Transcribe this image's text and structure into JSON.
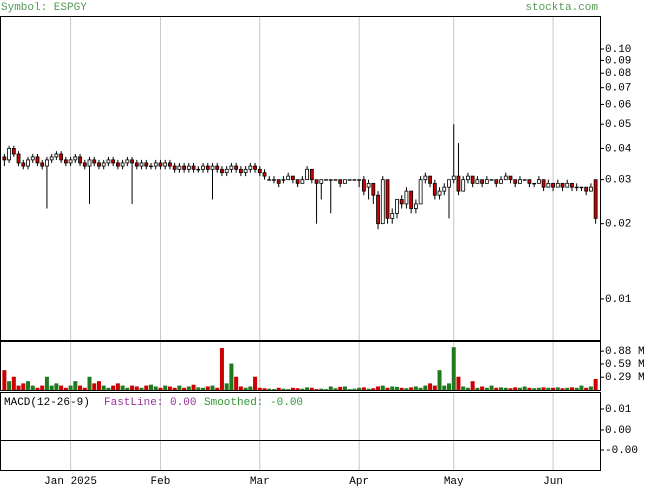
{
  "header": {
    "symbol": "Symbol: ESPGY",
    "site": "stockta.com"
  },
  "chart_data": [
    {
      "type": "candlestick",
      "log_scale": true,
      "grid": true,
      "up_color": "#ffffff",
      "down_color": "#cc0000",
      "categories": [
        null,
        null,
        null,
        null,
        null,
        null,
        null,
        null,
        null,
        null,
        null,
        null,
        null,
        null,
        "Jan 2025",
        null,
        null,
        null,
        null,
        null,
        null,
        null,
        null,
        null,
        null,
        null,
        null,
        null,
        null,
        null,
        null,
        null,
        null,
        "Feb",
        null,
        null,
        null,
        null,
        null,
        null,
        null,
        null,
        null,
        null,
        null,
        null,
        null,
        null,
        null,
        null,
        null,
        null,
        null,
        null,
        "Mar",
        null,
        null,
        null,
        null,
        null,
        null,
        null,
        null,
        null,
        null,
        null,
        null,
        null,
        null,
        null,
        null,
        null,
        null,
        null,
        null,
        "Apr",
        null,
        null,
        null,
        null,
        null,
        null,
        null,
        null,
        null,
        null,
        null,
        null,
        null,
        null,
        null,
        null,
        null,
        null,
        null,
        "May",
        null,
        null,
        null,
        null,
        null,
        null,
        null,
        null,
        null,
        null,
        null,
        null,
        null,
        null,
        null,
        null,
        null,
        null,
        null,
        null,
        "Jun",
        null,
        null,
        null,
        null,
        null,
        null,
        null,
        null,
        null
      ],
      "ohlc": [
        [
          0.037,
          0.038,
          0.034,
          0.036
        ],
        [
          0.036,
          0.041,
          0.035,
          0.04
        ],
        [
          0.04,
          0.041,
          0.037,
          0.038
        ],
        [
          0.038,
          0.039,
          0.034,
          0.035
        ],
        [
          0.035,
          0.036,
          0.033,
          0.034
        ],
        [
          0.034,
          0.037,
          0.033,
          0.036
        ],
        [
          0.036,
          0.038,
          0.035,
          0.037
        ],
        [
          0.037,
          0.038,
          0.034,
          0.035
        ],
        [
          0.035,
          0.036,
          0.033,
          0.034
        ],
        [
          0.034,
          0.037,
          0.023,
          0.036
        ],
        [
          0.036,
          0.038,
          0.035,
          0.037
        ],
        [
          0.037,
          0.039,
          0.036,
          0.038
        ],
        [
          0.038,
          0.039,
          0.035,
          0.036
        ],
        [
          0.036,
          0.037,
          0.034,
          0.035
        ],
        [
          0.035,
          0.037,
          0.034,
          0.036
        ],
        [
          0.036,
          0.038,
          0.035,
          0.037
        ],
        [
          0.037,
          0.038,
          0.034,
          0.035
        ],
        [
          0.035,
          0.036,
          0.033,
          0.034
        ],
        [
          0.034,
          0.037,
          0.024,
          0.036
        ],
        [
          0.036,
          0.037,
          0.034,
          0.035
        ],
        [
          0.035,
          0.036,
          0.033,
          0.034
        ],
        [
          0.034,
          0.036,
          0.033,
          0.035
        ],
        [
          0.035,
          0.037,
          0.034,
          0.036
        ],
        [
          0.036,
          0.037,
          0.034,
          0.035
        ],
        [
          0.035,
          0.036,
          0.033,
          0.034
        ],
        [
          0.034,
          0.036,
          0.033,
          0.035
        ],
        [
          0.035,
          0.037,
          0.034,
          0.036
        ],
        [
          0.036,
          0.037,
          0.024,
          0.035
        ],
        [
          0.035,
          0.036,
          0.033,
          0.034
        ],
        [
          0.034,
          0.036,
          0.033,
          0.035
        ],
        [
          0.035,
          0.036,
          0.033,
          0.034
        ],
        [
          0.034,
          0.035,
          0.033,
          0.034
        ],
        [
          0.034,
          0.036,
          0.033,
          0.035
        ],
        [
          0.035,
          0.036,
          0.033,
          0.034
        ],
        [
          0.034,
          0.036,
          0.033,
          0.035
        ],
        [
          0.035,
          0.036,
          0.033,
          0.034
        ],
        [
          0.034,
          0.035,
          0.032,
          0.033
        ],
        [
          0.033,
          0.035,
          0.032,
          0.034
        ],
        [
          0.034,
          0.035,
          0.032,
          0.033
        ],
        [
          0.033,
          0.035,
          0.032,
          0.034
        ],
        [
          0.034,
          0.035,
          0.032,
          0.033
        ],
        [
          0.033,
          0.034,
          0.032,
          0.033
        ],
        [
          0.033,
          0.035,
          0.032,
          0.034
        ],
        [
          0.034,
          0.035,
          0.032,
          0.033
        ],
        [
          0.033,
          0.035,
          0.025,
          0.034
        ],
        [
          0.034,
          0.035,
          0.032,
          0.033
        ],
        [
          0.033,
          0.034,
          0.031,
          0.032
        ],
        [
          0.032,
          0.034,
          0.031,
          0.033
        ],
        [
          0.033,
          0.035,
          0.032,
          0.034
        ],
        [
          0.034,
          0.035,
          0.032,
          0.033
        ],
        [
          0.033,
          0.034,
          0.031,
          0.032
        ],
        [
          0.032,
          0.034,
          0.031,
          0.033
        ],
        [
          0.033,
          0.035,
          0.032,
          0.034
        ],
        [
          0.034,
          0.035,
          0.032,
          0.033
        ],
        [
          0.033,
          0.034,
          0.031,
          0.032
        ],
        [
          0.032,
          0.033,
          0.03,
          0.031
        ],
        [
          0.03,
          0.031,
          0.03,
          0.03
        ],
        [
          0.03,
          0.031,
          0.029,
          0.03
        ],
        [
          0.03,
          0.03,
          0.028,
          0.029
        ],
        [
          0.03,
          0.031,
          0.029,
          0.03
        ],
        [
          0.03,
          0.032,
          0.03,
          0.031
        ],
        [
          0.031,
          0.031,
          0.029,
          0.03
        ],
        [
          0.03,
          0.03,
          0.028,
          0.029
        ],
        [
          0.029,
          0.031,
          0.029,
          0.03
        ],
        [
          0.03,
          0.034,
          0.03,
          0.033
        ],
        [
          0.033,
          0.033,
          0.029,
          0.03
        ],
        [
          0.03,
          0.03,
          0.02,
          0.029
        ],
        [
          0.029,
          0.03,
          0.025,
          0.03
        ],
        [
          0.03,
          0.03,
          0.03,
          0.03
        ],
        [
          0.03,
          0.03,
          0.022,
          0.03
        ],
        [
          0.03,
          0.03,
          0.03,
          0.03
        ],
        [
          0.03,
          0.03,
          0.028,
          0.029
        ],
        [
          0.029,
          0.03,
          0.029,
          0.03
        ],
        [
          0.03,
          0.03,
          0.03,
          0.03
        ],
        [
          0.03,
          0.03,
          0.03,
          0.03
        ],
        [
          0.03,
          0.03,
          0.028,
          0.03
        ],
        [
          0.03,
          0.031,
          0.026,
          0.027
        ],
        [
          0.028,
          0.03,
          0.025,
          0.029
        ],
        [
          0.029,
          0.029,
          0.024,
          0.026
        ],
        [
          0.026,
          0.027,
          0.019,
          0.02
        ],
        [
          0.02,
          0.031,
          0.02,
          0.03
        ],
        [
          0.03,
          0.03,
          0.02,
          0.021
        ],
        [
          0.021,
          0.023,
          0.02,
          0.022
        ],
        [
          0.022,
          0.025,
          0.021,
          0.025
        ],
        [
          0.025,
          0.026,
          0.023,
          0.024
        ],
        [
          0.024,
          0.028,
          0.023,
          0.027
        ],
        [
          0.027,
          0.027,
          0.022,
          0.023
        ],
        [
          0.023,
          0.025,
          0.022,
          0.024
        ],
        [
          0.024,
          0.031,
          0.024,
          0.03
        ],
        [
          0.03,
          0.032,
          0.029,
          0.031
        ],
        [
          0.031,
          0.031,
          0.028,
          0.029
        ],
        [
          0.029,
          0.03,
          0.025,
          0.026
        ],
        [
          0.026,
          0.028,
          0.025,
          0.027
        ],
        [
          0.027,
          0.029,
          0.026,
          0.028
        ],
        [
          0.028,
          0.03,
          0.021,
          0.03
        ],
        [
          0.03,
          0.05,
          0.029,
          0.031
        ],
        [
          0.031,
          0.042,
          0.026,
          0.027
        ],
        [
          0.027,
          0.031,
          0.027,
          0.03
        ],
        [
          0.03,
          0.032,
          0.029,
          0.031
        ],
        [
          0.031,
          0.031,
          0.028,
          0.029
        ],
        [
          0.029,
          0.031,
          0.029,
          0.03
        ],
        [
          0.03,
          0.03,
          0.028,
          0.029
        ],
        [
          0.029,
          0.031,
          0.029,
          0.03
        ],
        [
          0.03,
          0.03,
          0.03,
          0.03
        ],
        [
          0.03,
          0.03,
          0.028,
          0.029
        ],
        [
          0.029,
          0.031,
          0.029,
          0.03
        ],
        [
          0.03,
          0.032,
          0.03,
          0.031
        ],
        [
          0.031,
          0.031,
          0.029,
          0.03
        ],
        [
          0.03,
          0.03,
          0.028,
          0.029
        ],
        [
          0.029,
          0.031,
          0.029,
          0.03
        ],
        [
          0.03,
          0.03,
          0.03,
          0.03
        ],
        [
          0.03,
          0.03,
          0.028,
          0.029
        ],
        [
          0.029,
          0.029,
          0.028,
          0.029
        ],
        [
          0.029,
          0.031,
          0.029,
          0.03
        ],
        [
          0.03,
          0.03,
          0.027,
          0.028
        ],
        [
          0.028,
          0.03,
          0.028,
          0.029
        ],
        [
          0.029,
          0.029,
          0.027,
          0.028
        ],
        [
          0.028,
          0.03,
          0.028,
          0.029
        ],
        [
          0.029,
          0.029,
          0.027,
          0.028
        ],
        [
          0.028,
          0.03,
          0.028,
          0.029
        ],
        [
          0.029,
          0.029,
          0.027,
          0.028
        ],
        [
          0.028,
          0.029,
          0.027,
          0.028
        ],
        [
          0.028,
          0.028,
          0.027,
          0.028
        ],
        [
          0.028,
          0.028,
          0.026,
          0.027
        ],
        [
          0.027,
          0.029,
          0.027,
          0.028
        ],
        [
          0.03,
          0.03,
          0.02,
          0.021
        ]
      ],
      "ylim": [
        0.00685,
        0.1355
      ],
      "yticks": [
        {
          "value": 0.1,
          "label": "0.10"
        },
        0.09,
        0.08,
        0.07,
        0.06,
        0.05,
        0.04,
        0.03,
        0.02,
        0.01
      ]
    },
    {
      "type": "volume",
      "up_color": "#1f7a1f",
      "down_color": "#cc0000",
      "values": [
        0.45,
        0.2,
        0.3,
        0.1,
        0.15,
        0.2,
        0.1,
        0.05,
        0.1,
        0.3,
        0.1,
        0.15,
        0.1,
        0.05,
        0.1,
        0.2,
        0.1,
        0.05,
        0.3,
        0.15,
        0.2,
        0.1,
        0.05,
        0.1,
        0.15,
        0.1,
        0.05,
        0.1,
        0.08,
        0.05,
        0.1,
        0.12,
        0.08,
        0.05,
        0.1,
        0.08,
        0.05,
        0.1,
        0.05,
        0.08,
        0.12,
        0.06,
        0.05,
        0.08,
        0.1,
        0.05,
        0.95,
        0.15,
        0.6,
        0.3,
        0.08,
        0.05,
        0.08,
        0.3,
        0.05,
        0.04,
        0.03,
        0.02,
        0.05,
        0.03,
        0.02,
        0.05,
        0.04,
        0.03,
        0.06,
        0.05,
        0.02,
        0.03,
        0.02,
        0.08,
        0.04,
        0.07,
        0.08,
        0.02,
        0.03,
        0.05,
        0.06,
        0.03,
        0.04,
        0.08,
        0.1,
        0.05,
        0.08,
        0.07,
        0.05,
        0.04,
        0.06,
        0.08,
        0.05,
        0.1,
        0.15,
        0.1,
        0.45,
        0.1,
        0.15,
        0.97,
        0.3,
        0.08,
        0.05,
        0.2,
        0.05,
        0.08,
        0.05,
        0.1,
        0.05,
        0.06,
        0.05,
        0.04,
        0.06,
        0.05,
        0.08,
        0.05,
        0.04,
        0.05,
        0.06,
        0.05,
        0.05,
        0.06,
        0.04,
        0.05,
        0.06,
        0.05,
        0.1,
        0.05,
        0.08,
        0.25
      ],
      "ylim": [
        0,
        1.11
      ],
      "yticks": [
        {
          "value": 0.88,
          "label": "0.88 M"
        },
        {
          "value": 0.59,
          "label": "0.59 M"
        },
        {
          "value": 0.29,
          "label": "0.29 M"
        }
      ]
    },
    {
      "type": "macd",
      "title": "MACD(12-26-9)",
      "fast": "FastLine: 0.00",
      "smoothed": "Smoothed: -0.00",
      "fast_color": "#993399",
      "smoothed_color": "#339933",
      "ylim": [
        -0.0048,
        0.0181
      ],
      "yticks": [
        0.01,
        {
          "value": 0,
          "label": "0.00"
        }
      ],
      "hist_ylim": [
        -0.002,
        0.001
      ],
      "hist_yticks": [
        {
          "value": 0,
          "label": "-0.00"
        }
      ]
    }
  ]
}
